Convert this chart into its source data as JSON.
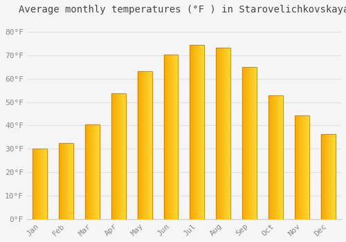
{
  "title": "Average monthly temperatures (°F ) in Starovelichkovskaya",
  "months": [
    "Jan",
    "Feb",
    "Mar",
    "Apr",
    "May",
    "Jun",
    "Jul",
    "Aug",
    "Sep",
    "Oct",
    "Nov",
    "Dec"
  ],
  "values": [
    30.2,
    32.4,
    40.5,
    53.6,
    63.3,
    70.2,
    74.5,
    73.2,
    65.0,
    52.7,
    44.2,
    36.3
  ],
  "bar_color_left": "#F5A800",
  "bar_color_right": "#FFD966",
  "bar_edge_color": "#C8820A",
  "background_color": "#F5F5F5",
  "grid_color": "#E0E0E0",
  "text_color": "#888888",
  "title_color": "#444444",
  "ylim": [
    0,
    85
  ],
  "yticks": [
    0,
    10,
    20,
    30,
    40,
    50,
    60,
    70,
    80
  ],
  "title_fontsize": 10,
  "tick_fontsize": 8,
  "font_family": "monospace",
  "bar_width": 0.55
}
